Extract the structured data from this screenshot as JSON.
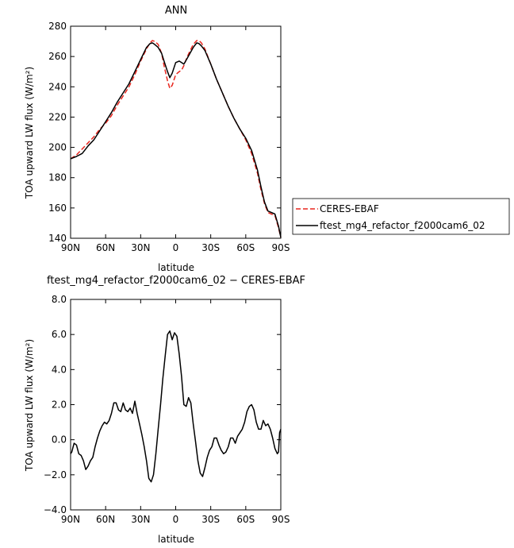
{
  "chart_data": [
    {
      "type": "line",
      "title": "ANN",
      "xlabel": "latitude",
      "ylabel": "TOA upward LW flux (W/m²)",
      "xlim": [
        90,
        -90
      ],
      "ylim": [
        140,
        280
      ],
      "xticks": [
        90,
        60,
        30,
        0,
        -30,
        -60,
        -90
      ],
      "xtick_labels": [
        "90N",
        "60N",
        "30N",
        "0",
        "30S",
        "60S",
        "90S"
      ],
      "yticks": [
        140,
        160,
        180,
        200,
        220,
        240,
        260,
        280
      ],
      "ytick_labels": [
        "140",
        "160",
        "180",
        "200",
        "220",
        "240",
        "260",
        "280"
      ],
      "legend": {
        "placement": "right-outside",
        "entries": [
          "CERES-EBAF",
          "ftest_mg4_refactor_f2000cam6_02"
        ]
      },
      "series": [
        {
          "name": "CERES-EBAF",
          "color": "#e8261e",
          "dash": "dashed",
          "x": [
            90,
            85,
            80,
            75,
            70,
            65,
            60,
            55,
            50,
            45,
            40,
            35,
            30,
            25,
            22,
            20,
            18,
            15,
            12,
            10,
            7,
            5,
            3,
            0,
            -3,
            -5,
            -7,
            -10,
            -15,
            -18,
            -20,
            -22,
            -25,
            -30,
            -35,
            -40,
            -45,
            -50,
            -55,
            -60,
            -65,
            -70,
            -73,
            -76,
            -79,
            -82,
            -85,
            -88,
            -90
          ],
          "y": [
            192.5,
            195,
            199,
            203,
            207,
            212,
            216,
            221,
            228,
            234,
            240,
            248,
            257,
            265,
            269,
            270.5,
            270,
            268,
            262,
            254,
            244,
            239,
            241,
            248,
            250,
            251,
            254,
            260,
            268,
            270.5,
            270.5,
            269,
            265,
            255,
            245,
            236,
            227,
            219,
            212,
            205,
            196,
            183,
            172,
            163,
            157,
            156,
            155,
            147,
            140.5
          ]
        },
        {
          "name": "ftest_mg4_refactor_f2000cam6_02",
          "color": "#000000",
          "dash": "solid",
          "x": [
            90,
            85,
            80,
            75,
            70,
            65,
            60,
            55,
            50,
            45,
            40,
            35,
            30,
            25,
            22,
            20,
            18,
            15,
            12,
            10,
            7,
            5,
            3,
            0,
            -3,
            -5,
            -7,
            -10,
            -15,
            -18,
            -20,
            -22,
            -25,
            -30,
            -35,
            -40,
            -45,
            -50,
            -55,
            -60,
            -65,
            -70,
            -73,
            -76,
            -79,
            -82,
            -85,
            -88,
            -90
          ],
          "y": [
            192.5,
            194,
            196,
            201,
            205,
            211,
            217,
            223,
            230,
            236,
            242,
            250,
            258,
            266,
            268.5,
            269,
            268,
            266,
            262,
            257,
            250,
            246,
            249,
            256,
            257,
            256,
            255,
            259,
            266,
            269,
            268.5,
            267,
            264,
            255,
            245,
            236,
            227,
            219,
            212,
            206,
            198,
            185,
            174,
            164,
            158,
            157,
            156,
            148,
            140.5
          ]
        }
      ]
    },
    {
      "type": "line",
      "title": "ftest_mg4_refactor_f2000cam6_02 − CERES-EBAF",
      "xlabel": "latitude",
      "ylabel": "TOA upward LW flux (W/m²)",
      "xlim": [
        90,
        -90
      ],
      "ylim": [
        -4,
        8
      ],
      "xticks": [
        90,
        60,
        30,
        0,
        -30,
        -60,
        -90
      ],
      "xtick_labels": [
        "90N",
        "60N",
        "30N",
        "0",
        "30S",
        "60S",
        "90S"
      ],
      "yticks": [
        -4,
        -2,
        0,
        2,
        4,
        6,
        8
      ],
      "ytick_labels": [
        "−4.0",
        "−2.0",
        "0.0",
        "2.0",
        "4.0",
        "6.0",
        "8.0"
      ],
      "series": [
        {
          "color": "#000000",
          "dash": "solid",
          "x": [
            90,
            89,
            87,
            85,
            83,
            81,
            79,
            77,
            75,
            73,
            71,
            69,
            67,
            65,
            63,
            61,
            59,
            57,
            55,
            53,
            51,
            49,
            47,
            45,
            43,
            41,
            39,
            37,
            35,
            33,
            31,
            29,
            27,
            25,
            23,
            21,
            19,
            17,
            15,
            13,
            11,
            9,
            7,
            5,
            3,
            1,
            -1,
            -3,
            -5,
            -7,
            -9,
            -11,
            -13,
            -15,
            -17,
            -19,
            -21,
            -23,
            -25,
            -27,
            -29,
            -31,
            -33,
            -35,
            -37,
            -39,
            -41,
            -43,
            -45,
            -47,
            -49,
            -51,
            -53,
            -55,
            -57,
            -59,
            -61,
            -63,
            -65,
            -67,
            -69,
            -71,
            -73,
            -75,
            -77,
            -79,
            -81,
            -83,
            -85,
            -87,
            -88,
            -89,
            -90
          ],
          "y": [
            -0.8,
            -0.7,
            -0.2,
            -0.3,
            -0.8,
            -0.9,
            -1.2,
            -1.7,
            -1.5,
            -1.2,
            -1.0,
            -0.4,
            0.1,
            0.5,
            0.8,
            1.0,
            0.9,
            1.1,
            1.5,
            2.1,
            2.1,
            1.7,
            1.6,
            2.1,
            1.7,
            1.6,
            1.8,
            1.5,
            2.2,
            1.5,
            0.9,
            0.3,
            -0.4,
            -1.2,
            -2.2,
            -2.4,
            -2.0,
            -0.8,
            0.6,
            2.0,
            3.5,
            4.8,
            6.0,
            6.2,
            5.7,
            6.1,
            5.9,
            4.9,
            3.6,
            2.0,
            1.9,
            2.4,
            2.1,
            0.9,
            -0.1,
            -1.2,
            -1.9,
            -2.1,
            -1.6,
            -1.0,
            -0.6,
            -0.4,
            0.1,
            0.1,
            -0.3,
            -0.6,
            -0.8,
            -0.7,
            -0.4,
            0.1,
            0.1,
            -0.2,
            0.2,
            0.4,
            0.6,
            1.0,
            1.6,
            1.9,
            2.0,
            1.7,
            1.0,
            0.6,
            0.6,
            1.1,
            0.8,
            0.9,
            0.6,
            0.1,
            -0.5,
            -0.8,
            -0.7,
            0.4,
            0.6
          ]
        }
      ]
    }
  ]
}
